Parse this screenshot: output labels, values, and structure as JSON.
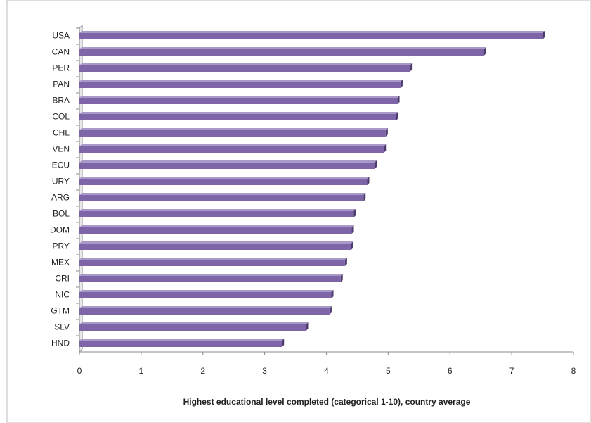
{
  "chart_data": {
    "type": "bar",
    "orientation": "horizontal",
    "x_label": "Highest educational level completed (categorical 1-10), country average",
    "categories": [
      "USA",
      "CAN",
      "PER",
      "PAN",
      "BRA",
      "COL",
      "CHL",
      "VEN",
      "ECU",
      "URY",
      "ARG",
      "BOL",
      "DOM",
      "PRY",
      "MEX",
      "CRI",
      "NIC",
      "GTM",
      "SLV",
      "HND"
    ],
    "values": [
      7.5,
      6.55,
      5.35,
      5.2,
      5.15,
      5.13,
      4.96,
      4.93,
      4.78,
      4.66,
      4.6,
      4.44,
      4.41,
      4.4,
      4.3,
      4.23,
      4.08,
      4.05,
      3.67,
      3.28
    ],
    "color": "#7e65a8",
    "xlim": [
      0,
      8
    ],
    "xticks": [
      0,
      1,
      2,
      3,
      4,
      5,
      6,
      7,
      8
    ],
    "grid": false
  }
}
